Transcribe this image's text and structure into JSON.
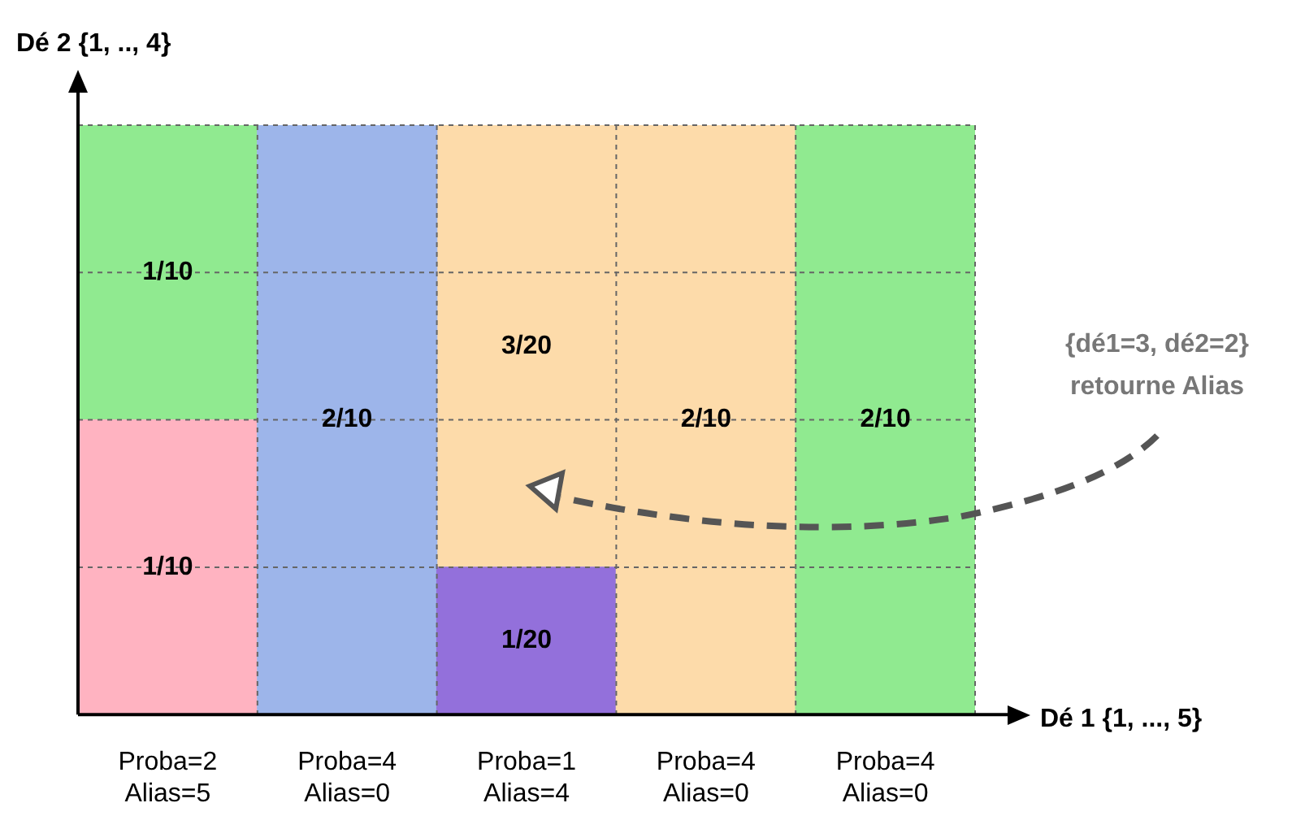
{
  "chart_data": {
    "type": "bar",
    "stacked": true,
    "xlabel": "Dé 1 {1, ..., 5}",
    "ylabel": "Dé 2 {1, .., 4}",
    "categories": [
      "Proba=2\nAlias=5",
      "Proba=4\nAlias=0",
      "Proba=1\nAlias=4",
      "Proba=4\nAlias=0",
      "Proba=4\nAlias=0"
    ],
    "series": [
      {
        "values": [
          0.1,
          0.2,
          0.05,
          0.2,
          0.2
        ],
        "colors": [
          "#ffb3c1",
          "#9db5ea",
          "#9370db",
          "#fddbaa",
          "#90ea90"
        ],
        "value_labels": [
          "1/10",
          "2/10",
          "1/20",
          "2/10",
          "2/10"
        ]
      },
      {
        "values": [
          0.1,
          null,
          0.15,
          null,
          null
        ],
        "colors": [
          "#90ea90",
          "#9db5ea",
          "#fddbaa",
          "#fddbaa",
          "#90ea90"
        ],
        "value_labels": [
          "1/10",
          null,
          "3/20",
          null,
          null
        ]
      }
    ],
    "ylim": [
      0,
      0.2
    ],
    "yticks": [
      {
        "value": 0.05,
        "label": null
      },
      {
        "value": 0.1,
        "label": null
      },
      {
        "value": 0.15,
        "label": null
      },
      {
        "value": 0.2,
        "label": null
      }
    ],
    "tick_labels": "x",
    "grid": true,
    "legend": false,
    "annotations": [
      "{dé1=3, dé2=2}\nretourne Alias"
    ]
  }
}
